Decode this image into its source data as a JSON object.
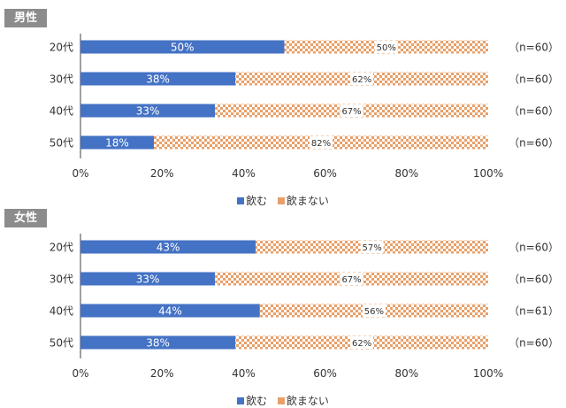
{
  "colors": {
    "drink": "#4472c4",
    "notDrink": "#e8a06a",
    "axis": "#404040",
    "grid": "#d9d9d9"
  },
  "chart_data": [
    {
      "type": "bar",
      "title": "男性",
      "orientation": "horizontal-stacked-100",
      "categories": [
        "20代",
        "30代",
        "40代",
        "50代"
      ],
      "n_labels": [
        "（n=60）",
        "（n=60）",
        "（n=60）",
        "（n=60）"
      ],
      "series": [
        {
          "name": "飲む",
          "values": [
            50,
            38,
            33,
            18
          ],
          "labels": [
            "50%",
            "38%",
            "33%",
            "18%"
          ]
        },
        {
          "name": "飲まない",
          "values": [
            50,
            62,
            67,
            82
          ],
          "labels": [
            "50%",
            "62%",
            "67%",
            "82%"
          ]
        }
      ],
      "xticks": [
        "0%",
        "20%",
        "40%",
        "60%",
        "80%",
        "100%"
      ],
      "xlim": [
        0,
        100
      ],
      "legend": [
        "飲む",
        "飲まない"
      ]
    },
    {
      "type": "bar",
      "title": "女性",
      "orientation": "horizontal-stacked-100",
      "categories": [
        "20代",
        "30代",
        "40代",
        "50代"
      ],
      "n_labels": [
        "（n=60）",
        "（n=60）",
        "（n=61）",
        "（n=60）"
      ],
      "series": [
        {
          "name": "飲む",
          "values": [
            43,
            33,
            44,
            38
          ],
          "labels": [
            "43%",
            "33%",
            "44%",
            "38%"
          ]
        },
        {
          "name": "飲まない",
          "values": [
            57,
            67,
            56,
            62
          ],
          "labels": [
            "57%",
            "67%",
            "56%",
            "62%"
          ]
        }
      ],
      "xticks": [
        "0%",
        "20%",
        "40%",
        "60%",
        "80%",
        "100%"
      ],
      "xlim": [
        0,
        100
      ],
      "legend": [
        "飲む",
        "飲まない"
      ]
    }
  ]
}
